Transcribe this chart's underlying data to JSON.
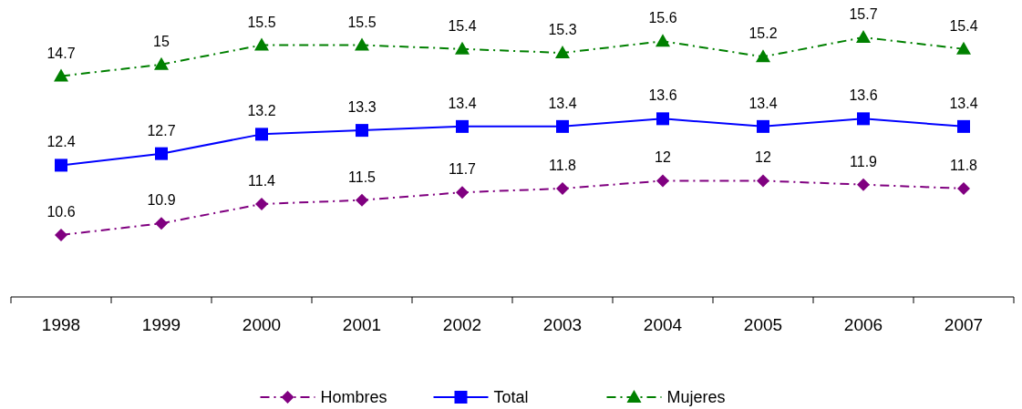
{
  "chart_data": {
    "type": "line",
    "categories": [
      "1998",
      "1999",
      "2000",
      "2001",
      "2002",
      "2003",
      "2004",
      "2005",
      "2006",
      "2007"
    ],
    "series": [
      {
        "name": "Hombres",
        "color": "#800080",
        "marker": "diamond",
        "line_style": "dashed",
        "values": [
          10.6,
          10.9,
          11.4,
          11.5,
          11.7,
          11.8,
          12,
          12,
          11.9,
          11.8
        ]
      },
      {
        "name": "Total",
        "color": "#0000ff",
        "marker": "square",
        "line_style": "solid",
        "values": [
          12.4,
          12.7,
          13.2,
          13.3,
          13.4,
          13.4,
          13.6,
          13.4,
          13.6,
          13.4
        ]
      },
      {
        "name": "Mujeres",
        "color": "#008000",
        "marker": "triangle",
        "line_style": "dashed",
        "values": [
          14.7,
          15,
          15.5,
          15.5,
          15.4,
          15.3,
          15.6,
          15.2,
          15.7,
          15.4
        ]
      }
    ],
    "data_labels": true,
    "legend": "bottom"
  }
}
